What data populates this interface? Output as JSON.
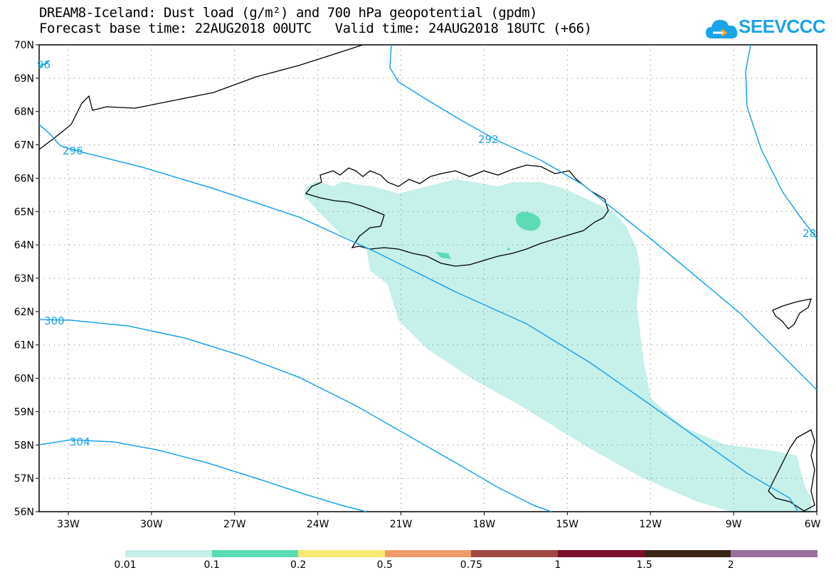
{
  "header": {
    "title_line1": "DREAM8-Iceland: Dust load (g/m²) and 700 hPa geopotential (gpdm)",
    "title_line2": "Forecast base time: 22AUG2018 00UTC   Valid time: 24AUG2018 18UTC (+66)"
  },
  "logo": {
    "text": "SEEVCCC",
    "icon": "cloud-icon",
    "color": "#1aa3e8"
  },
  "map": {
    "lat_labels": [
      "70N",
      "69N",
      "68N",
      "67N",
      "66N",
      "65N",
      "64N",
      "63N",
      "62N",
      "61N",
      "60N",
      "59N",
      "58N",
      "57N",
      "56N"
    ],
    "lon_labels": [
      "33W",
      "30W",
      "27W",
      "24W",
      "21W",
      "18W",
      "15W",
      "12W",
      "9W",
      "6W"
    ],
    "contour_labels": {
      "c296_left": "96",
      "c296": "296",
      "c292": "292",
      "c288": "28",
      "c300": "300",
      "c304": "304"
    },
    "contour_color": "#1aa3e8",
    "dust_color_low": "#c6f0ea",
    "dust_color_mid": "#5cdcb4"
  },
  "legend": {
    "colors": [
      "#c6f0ea",
      "#5cdcb4",
      "#f5e873",
      "#ef9a6a",
      "#a04a44",
      "#7d0f2c",
      "#3b2516",
      "#9a6fa0"
    ],
    "labels": [
      "0.01",
      "0.1",
      "0.2",
      "0.5",
      "0.75",
      "1",
      "1.5",
      "2"
    ]
  }
}
